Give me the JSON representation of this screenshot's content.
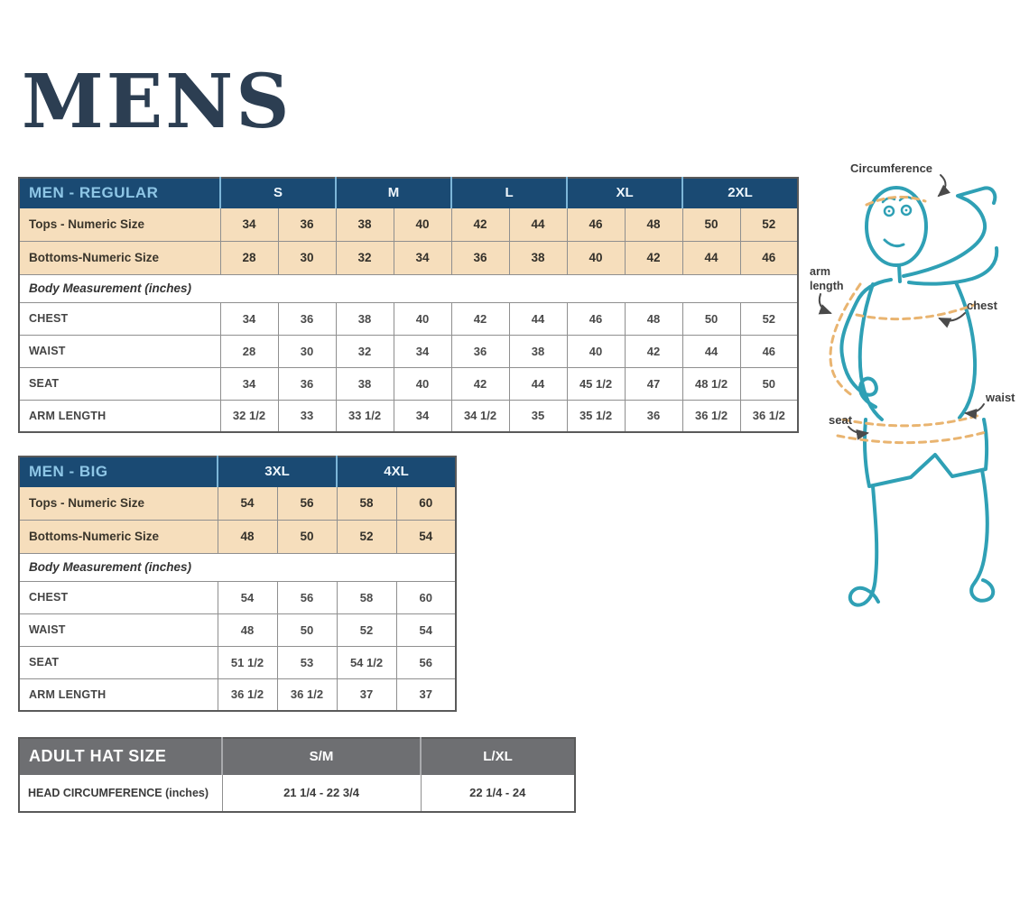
{
  "page": {
    "title": "MENS"
  },
  "tables": [
    {
      "id": "tbl-regular",
      "title": "MEN - REGULAR",
      "size_groups": [
        "S",
        "M",
        "L",
        "XL",
        "2XL"
      ],
      "numeric_rows": [
        {
          "label": "Tops - Numeric Size",
          "values": [
            "34",
            "36",
            "38",
            "40",
            "42",
            "44",
            "46",
            "48",
            "50",
            "52"
          ]
        },
        {
          "label": "Bottoms-Numeric Size",
          "values": [
            "28",
            "30",
            "32",
            "34",
            "36",
            "38",
            "40",
            "42",
            "44",
            "46"
          ]
        }
      ],
      "note": "Body Measurement (inches)",
      "body_rows": [
        {
          "label": "CHEST",
          "values": [
            "34",
            "36",
            "38",
            "40",
            "42",
            "44",
            "46",
            "48",
            "50",
            "52"
          ]
        },
        {
          "label": "WAIST",
          "values": [
            "28",
            "30",
            "32",
            "34",
            "36",
            "38",
            "40",
            "42",
            "44",
            "46"
          ]
        },
        {
          "label": "SEAT",
          "values": [
            "34",
            "36",
            "38",
            "40",
            "42",
            "44",
            "45 1/2",
            "47",
            "48 1/2",
            "50"
          ]
        },
        {
          "label": "ARM LENGTH",
          "values": [
            "32 1/2",
            "33",
            "33 1/2",
            "34",
            "34 1/2",
            "35",
            "35 1/2",
            "36",
            "36 1/2",
            "36 1/2"
          ]
        }
      ]
    },
    {
      "id": "tbl-big",
      "title": "MEN - BIG",
      "size_groups": [
        "3XL",
        "4XL"
      ],
      "numeric_rows": [
        {
          "label": "Tops - Numeric Size",
          "values": [
            "54",
            "56",
            "58",
            "60"
          ]
        },
        {
          "label": "Bottoms-Numeric Size",
          "values": [
            "48",
            "50",
            "52",
            "54"
          ]
        }
      ],
      "note": "Body Measurement (inches)",
      "body_rows": [
        {
          "label": "CHEST",
          "values": [
            "54",
            "56",
            "58",
            "60"
          ]
        },
        {
          "label": "WAIST",
          "values": [
            "48",
            "50",
            "52",
            "54"
          ]
        },
        {
          "label": "SEAT",
          "values": [
            "51 1/2",
            "53",
            "54 1/2",
            "56"
          ]
        },
        {
          "label": "ARM LENGTH",
          "values": [
            "36 1/2",
            "36 1/2",
            "37",
            "37"
          ]
        }
      ]
    }
  ],
  "hat_table": {
    "title": "ADULT HAT SIZE",
    "columns": [
      "S/M",
      "L/XL"
    ],
    "rows": [
      {
        "label": "HEAD CIRCUMFERENCE (inches)",
        "values": [
          "21 1/4 - 22 3/4",
          "22 1/4 - 24"
        ]
      }
    ]
  },
  "figure": {
    "labels": {
      "circumference": "Circumference",
      "arm": "arm",
      "length": "length",
      "chest": "chest",
      "waist": "waist",
      "seat": "seat"
    }
  },
  "colors": {
    "header_navy": "#1a4a73",
    "header_title_blue": "#8ec6e6",
    "row_tan": "#f6debc",
    "hat_header_gray": "#6e6f72",
    "figure_teal": "#2fa0b5",
    "measure_dash_orange": "#e9b470",
    "title_navy": "#2c3e52"
  }
}
